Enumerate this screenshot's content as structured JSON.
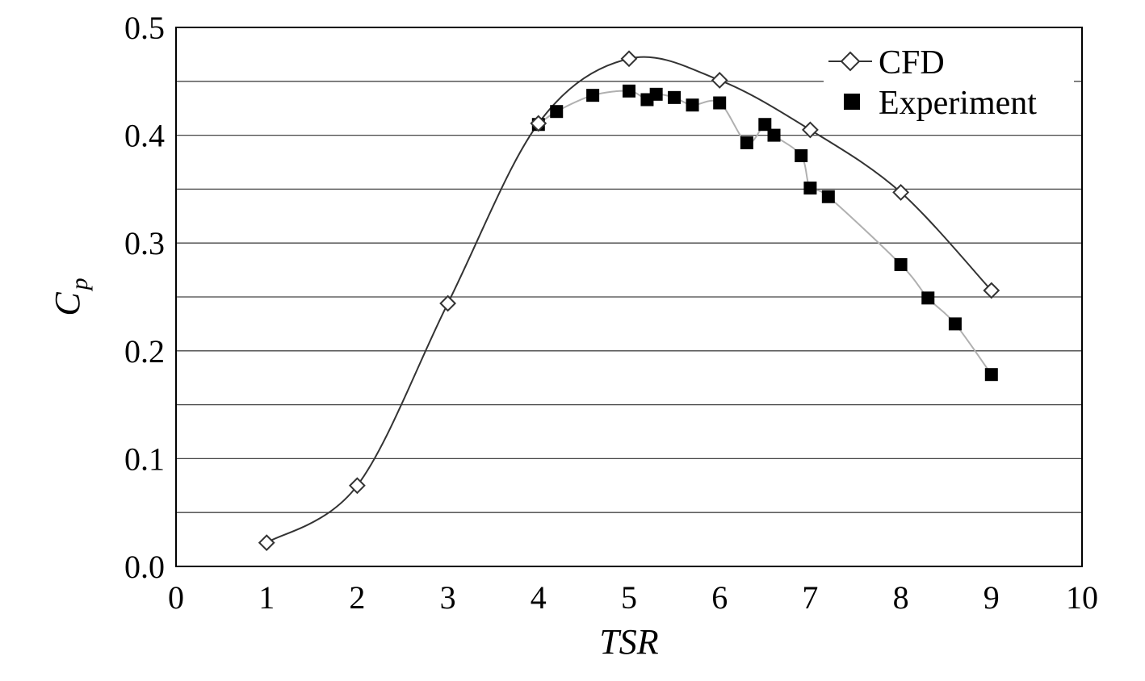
{
  "chart_data": {
    "type": "line",
    "xlabel": "TSR",
    "ylabel": {
      "symbol": "C",
      "subscript": "p"
    },
    "xlim": [
      0,
      10
    ],
    "ylim": [
      0,
      0.5
    ],
    "x_ticks": [
      "0",
      "1",
      "2",
      "3",
      "4",
      "5",
      "6",
      "7",
      "8",
      "9",
      "10"
    ],
    "y_ticks": [
      "0.0",
      "0.1",
      "0.2",
      "0.3",
      "0.4",
      "0.5"
    ],
    "grid": "horizontal",
    "legend_position": "top-right",
    "series": [
      {
        "name": "CFD",
        "marker": "open-diamond",
        "line_color": "#333333",
        "x": [
          1,
          2,
          3,
          4,
          5,
          6,
          7,
          8,
          9
        ],
        "y": [
          0.022,
          0.075,
          0.244,
          0.411,
          0.471,
          0.451,
          0.405,
          0.347,
          0.256
        ]
      },
      {
        "name": "Experiment",
        "marker": "filled-square",
        "line_color": "#b0b0b0",
        "x": [
          4.0,
          4.2,
          4.6,
          5.0,
          5.2,
          5.3,
          5.5,
          5.7,
          6.0,
          6.3,
          6.5,
          6.6,
          6.9,
          7.0,
          7.2,
          8.0,
          8.3,
          8.6,
          9.0
        ],
        "y": [
          0.41,
          0.422,
          0.437,
          0.441,
          0.433,
          0.438,
          0.435,
          0.428,
          0.43,
          0.393,
          0.41,
          0.4,
          0.381,
          0.351,
          0.343,
          0.28,
          0.249,
          0.225,
          0.178
        ]
      }
    ]
  }
}
